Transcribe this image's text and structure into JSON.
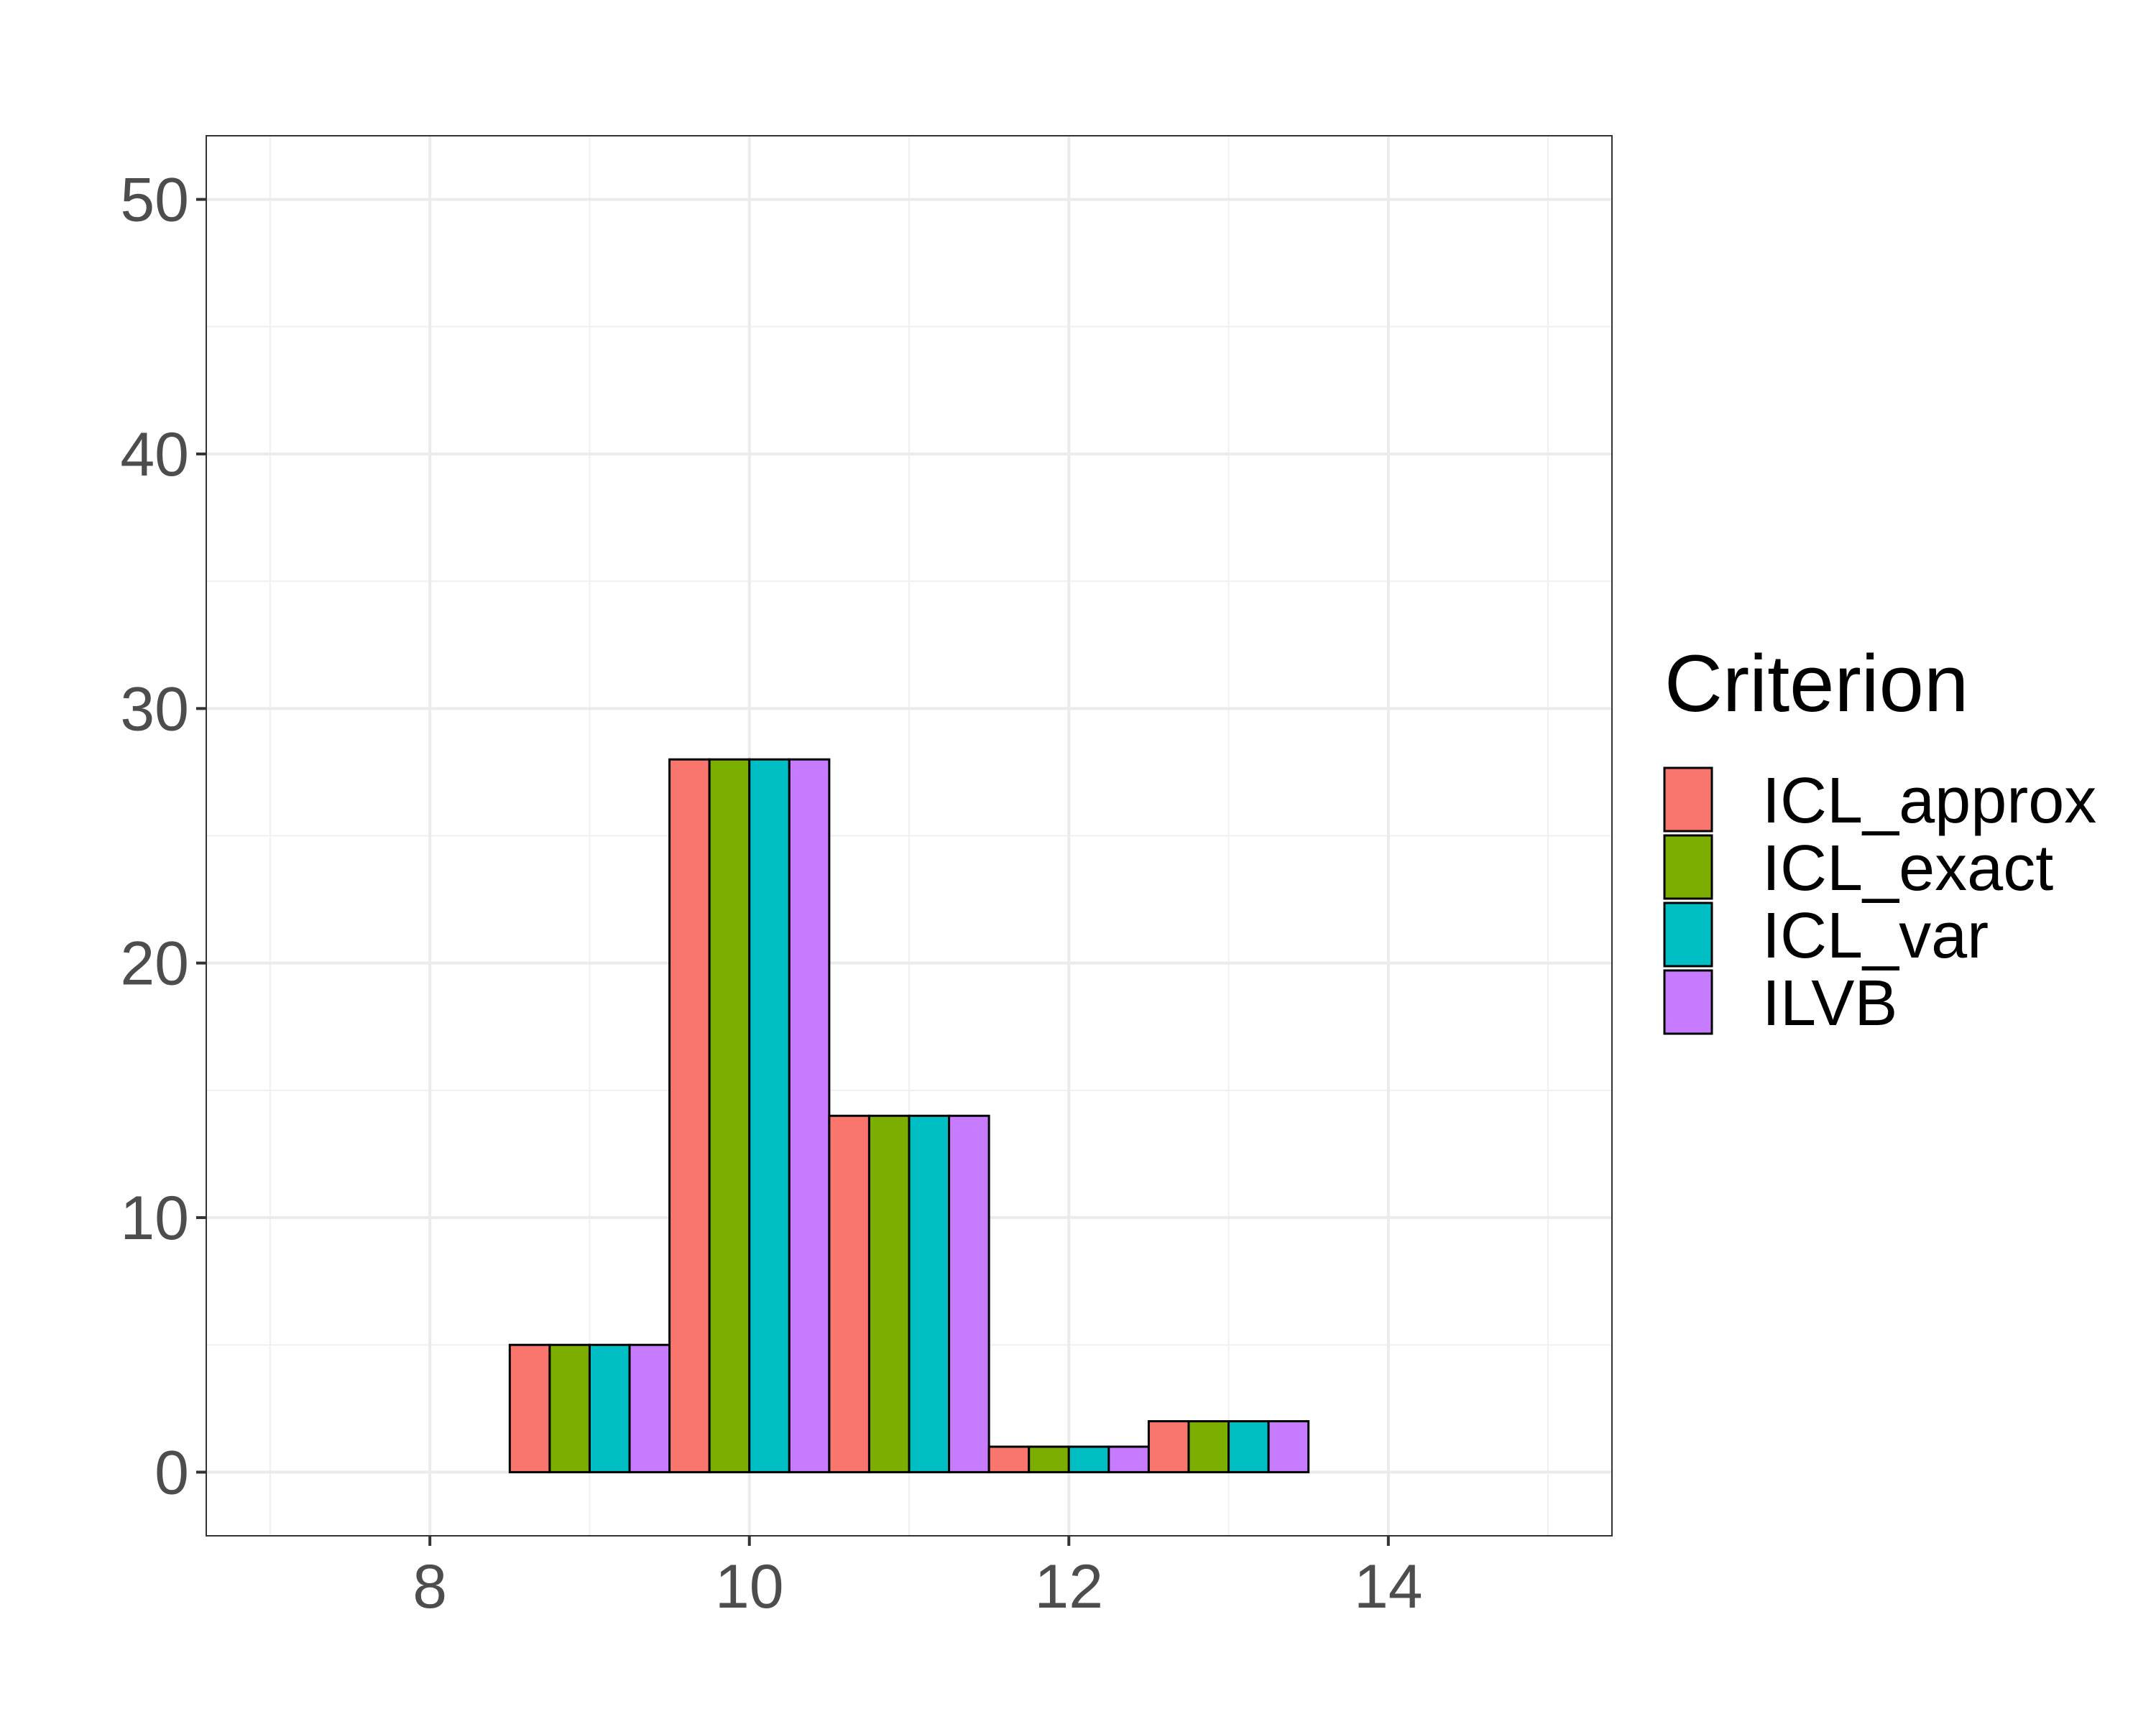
{
  "chart_data": {
    "type": "bar",
    "x": [
      9,
      10,
      11,
      12,
      13
    ],
    "series": [
      {
        "name": "ICL_approx",
        "values": [
          5,
          28,
          14,
          1,
          2
        ],
        "color": "#F8766D"
      },
      {
        "name": "ICL_exact",
        "values": [
          5,
          28,
          14,
          1,
          2
        ],
        "color": "#7CAE00"
      },
      {
        "name": "ICL_var",
        "values": [
          5,
          28,
          14,
          1,
          2
        ],
        "color": "#00BFC4"
      },
      {
        "name": "ILVB",
        "values": [
          5,
          28,
          14,
          1,
          2
        ],
        "color": "#C77CFF"
      }
    ],
    "xlim": [
      6.6,
      15.4
    ],
    "ylim": [
      -2.5,
      52.5
    ],
    "xticks": [
      8,
      10,
      12,
      14
    ],
    "yticks": [
      0,
      10,
      20,
      30,
      40,
      50
    ],
    "xtick_labels": [
      "8",
      "10",
      "12",
      "14"
    ],
    "ytick_labels": [
      "0",
      "10",
      "20",
      "30",
      "40",
      "50"
    ],
    "bar_width": 1,
    "position": "dodge",
    "grid": true,
    "legend": {
      "title": "Criterion",
      "placement": "right"
    },
    "xlabel": "",
    "ylabel": "",
    "title": ""
  }
}
